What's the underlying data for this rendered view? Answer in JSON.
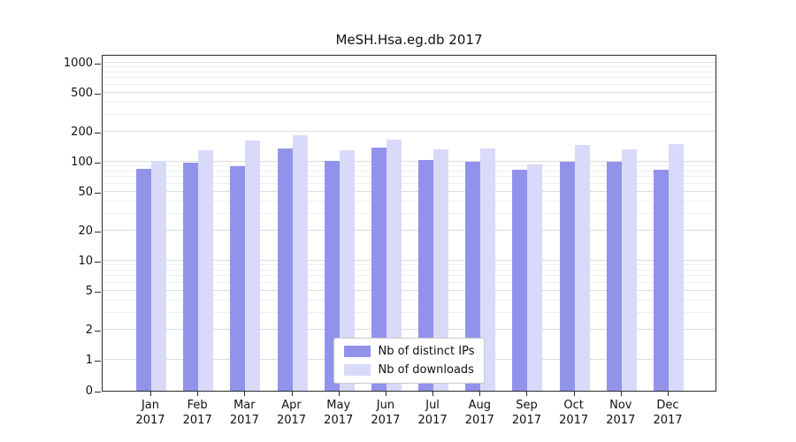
{
  "chart_data": {
    "type": "bar",
    "title": "MeSH.Hsa.eg.db 2017",
    "categories": [
      {
        "label": "Jan",
        "sublabel": "2017"
      },
      {
        "label": "Feb",
        "sublabel": "2017"
      },
      {
        "label": "Mar",
        "sublabel": "2017"
      },
      {
        "label": "Apr",
        "sublabel": "2017"
      },
      {
        "label": "May",
        "sublabel": "2017"
      },
      {
        "label": "Jun",
        "sublabel": "2017"
      },
      {
        "label": "Jul",
        "sublabel": "2017"
      },
      {
        "label": "Aug",
        "sublabel": "2017"
      },
      {
        "label": "Sep",
        "sublabel": "2017"
      },
      {
        "label": "Oct",
        "sublabel": "2017"
      },
      {
        "label": "Nov",
        "sublabel": "2017"
      },
      {
        "label": "Dec",
        "sublabel": "2017"
      }
    ],
    "series": [
      {
        "name": "Nb of distinct IPs",
        "color": "#9193ea",
        "values": [
          85,
          97,
          90,
          135,
          102,
          140,
          105,
          100,
          83,
          100,
          100,
          83
        ]
      },
      {
        "name": "Nb of downloads",
        "color": "#d9daf9",
        "values": [
          103,
          130,
          165,
          185,
          132,
          168,
          133,
          136,
          95,
          148,
          134,
          152
        ]
      }
    ],
    "yscale": "symlog",
    "yticks": [
      0,
      1,
      2,
      5,
      10,
      20,
      50,
      100,
      200,
      500,
      1000
    ],
    "ylim": [
      0,
      1000
    ],
    "grid": true,
    "legend_position": "lower center"
  }
}
